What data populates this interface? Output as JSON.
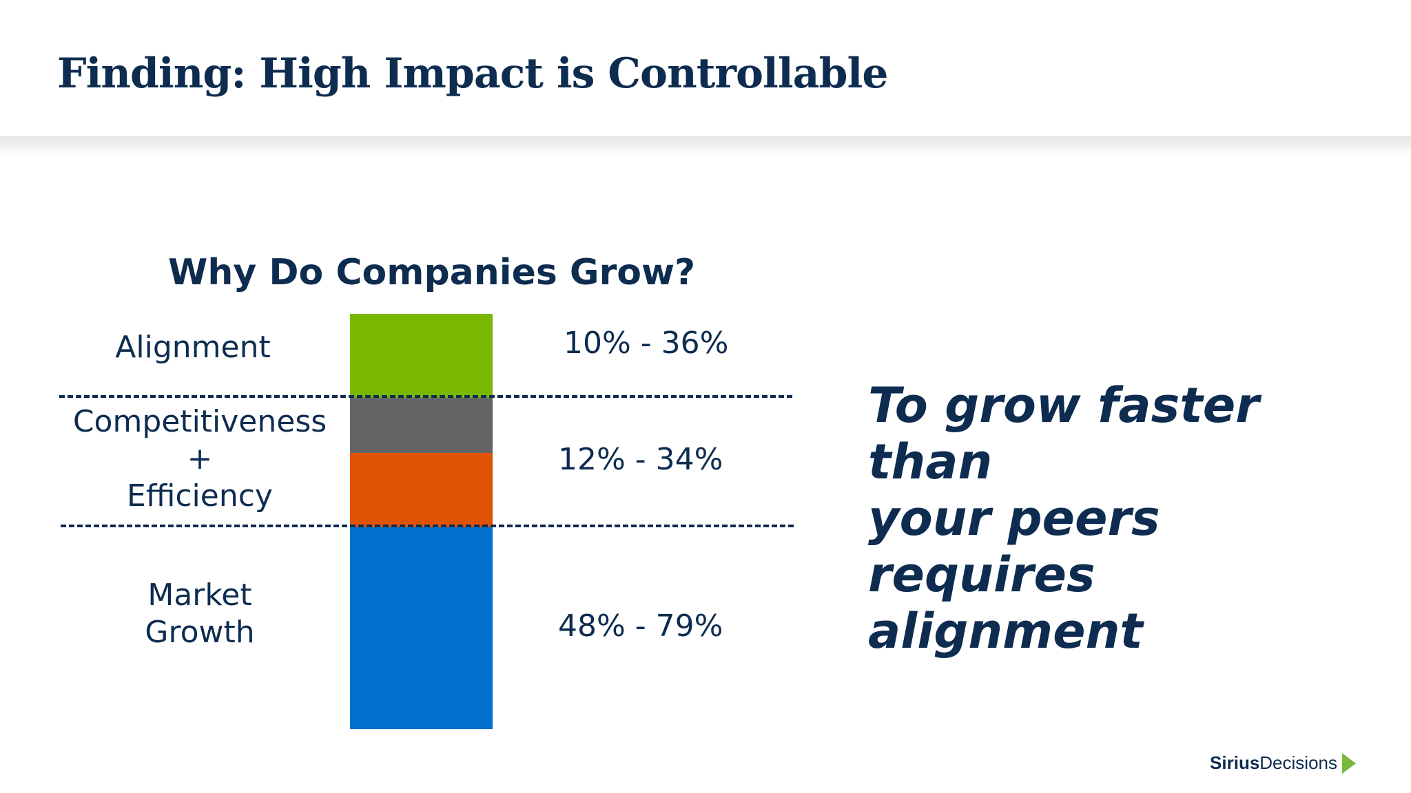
{
  "page": {
    "title": "Finding:  High Impact is Controllable"
  },
  "diagram": {
    "title": "Why Do Companies Grow?",
    "rows": [
      {
        "label_lines": [
          "Alignment"
        ],
        "range": "10% - 36%"
      },
      {
        "label_lines": [
          "Competitiveness",
          "+",
          "Efficiency"
        ],
        "range": "12% - 34%"
      },
      {
        "label_lines": [
          "Market",
          "Growth"
        ],
        "range": "48% - 79%"
      }
    ],
    "bar_colors": {
      "alignment": "#78b800",
      "competitiveness": "#636466",
      "efficiency": "#e05306",
      "market_growth": "#0072ce"
    }
  },
  "callout": {
    "text": "To grow faster than\nyour peers requires\nalignment"
  },
  "brand": {
    "first": "Sirius",
    "second": "Decisions",
    "arrow_color": "#78b83c"
  }
}
